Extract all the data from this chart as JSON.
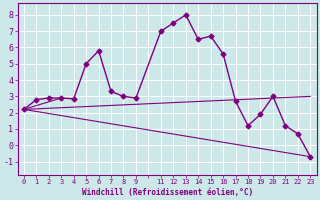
{
  "xlabel": "Windchill (Refroidissement éolien,°C)",
  "background_color": "#cce8e8",
  "grid_color": "#ffffff",
  "line_color": "#800080",
  "xlim": [
    -0.5,
    23.5
  ],
  "ylim": [
    -1.8,
    8.7
  ],
  "xtick_positions": [
    0,
    1,
    2,
    3,
    4,
    5,
    6,
    7,
    8,
    9,
    10,
    11,
    12,
    13,
    14,
    15,
    16,
    17,
    18,
    19,
    20,
    21,
    22,
    23
  ],
  "xtick_labels": [
    "0",
    "1",
    "2",
    "3",
    "4",
    "5",
    "6",
    "7",
    "8",
    "9",
    "",
    "11",
    "12",
    "13",
    "14",
    "15",
    "16",
    "17",
    "18",
    "19",
    "20",
    "21",
    "22",
    "23"
  ],
  "yticks": [
    -1,
    0,
    1,
    2,
    3,
    4,
    5,
    6,
    7,
    8
  ],
  "series1_x": [
    0,
    1,
    2,
    3,
    4,
    5,
    6,
    7,
    8,
    9,
    11,
    12,
    13,
    14,
    15,
    16,
    17,
    18,
    19,
    20,
    21,
    22,
    23
  ],
  "series1_y": [
    2.2,
    2.8,
    2.9,
    2.9,
    2.85,
    5.0,
    5.8,
    3.3,
    3.0,
    2.9,
    7.0,
    7.5,
    8.0,
    6.5,
    6.7,
    5.6,
    2.7,
    1.2,
    1.9,
    3.0,
    1.2,
    0.7,
    -0.7
  ],
  "fan_lines": [
    {
      "x": [
        0,
        23
      ],
      "y": [
        2.2,
        -0.7
      ]
    },
    {
      "x": [
        0,
        23
      ],
      "y": [
        2.2,
        3.0
      ]
    },
    {
      "x": [
        0,
        3
      ],
      "y": [
        2.2,
        2.9
      ]
    }
  ]
}
